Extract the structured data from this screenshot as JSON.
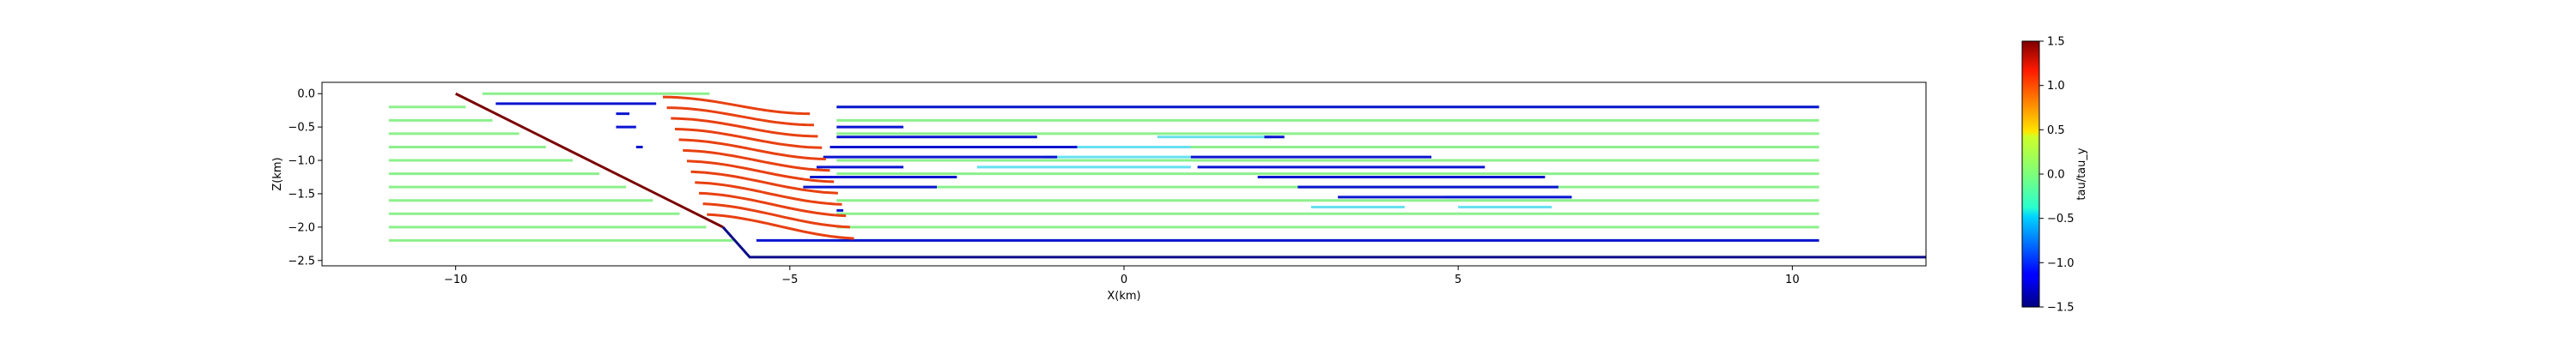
{
  "chart_data": {
    "type": "line",
    "title": "",
    "xlabel": "X(km)",
    "ylabel": "Z(km)",
    "xlim": [
      -12.0,
      12.0
    ],
    "ylim": [
      -2.58,
      0.17
    ],
    "xticks": [
      -10,
      -5,
      0,
      5,
      10
    ],
    "yticks": [
      0.0,
      -0.5,
      -1.0,
      -1.5,
      -2.0,
      -2.5
    ],
    "xtick_labels": [
      "−10",
      "−5",
      "0",
      "5",
      "10"
    ],
    "ytick_labels": [
      "0.0",
      "−0.5",
      "−1.0",
      "−1.5",
      "−2.0",
      "−2.5"
    ],
    "grid": false,
    "fault": {
      "description_color": "#7a0000",
      "x": [
        -10.0,
        -6.0
      ],
      "y": [
        0.0,
        -2.0
      ]
    },
    "basement": {
      "color": "#0b0b8a",
      "x": [
        -6.0,
        -5.6,
        12.0
      ],
      "y": [
        -2.0,
        -2.45,
        -2.45
      ]
    },
    "green_layers": {
      "color": "#8cf08c",
      "x_start": -11.0,
      "x_end": 10.4,
      "y": [
        -0.2,
        -0.4,
        -0.6,
        -0.8,
        -1.0,
        -1.2,
        -1.4,
        -1.6,
        -1.8,
        -2.0,
        -2.2
      ],
      "top_line": {
        "x": [
          -9.6,
          -6.2
        ],
        "y": [
          0.0,
          0.0
        ]
      }
    },
    "blue_layers": {
      "color": "#0a14d0",
      "segments": [
        {
          "x": [
            -4.3,
            10.4
          ],
          "y": -0.2
        },
        {
          "x": [
            -4.3,
            -3.3
          ],
          "y": -0.5
        },
        {
          "x": [
            -4.3,
            -1.3
          ],
          "y": -0.65
        },
        {
          "x": [
            -4.4,
            -0.7
          ],
          "y": -0.8
        },
        {
          "x": [
            -4.5,
            -1.0
          ],
          "y": -0.95
        },
        {
          "x": [
            -4.6,
            -3.3
          ],
          "y": -1.1
        },
        {
          "x": [
            -4.7,
            -2.5
          ],
          "y": -1.25
        },
        {
          "x": [
            -4.8,
            -2.8
          ],
          "y": -1.4
        },
        {
          "x": [
            -4.3,
            -4.2
          ],
          "y": -1.75
        },
        {
          "x": [
            -5.5,
            10.4
          ],
          "y": -2.2
        },
        {
          "x": [
            -9.4,
            -7.0
          ],
          "y": -0.15
        },
        {
          "x": [
            -7.6,
            -7.4
          ],
          "y": -0.3
        },
        {
          "x": [
            -7.6,
            -7.3
          ],
          "y": -0.5
        },
        {
          "x": [
            -7.3,
            -7.2
          ],
          "y": -0.8
        },
        {
          "x": [
            2.1,
            2.4
          ],
          "y": -0.65
        },
        {
          "x": [
            1.0,
            4.6
          ],
          "y": -0.95
        },
        {
          "x": [
            1.1,
            5.4
          ],
          "y": -1.1
        },
        {
          "x": [
            2.0,
            6.3
          ],
          "y": -1.25
        },
        {
          "x": [
            2.6,
            6.5
          ],
          "y": -1.4
        },
        {
          "x": [
            3.2,
            6.7
          ],
          "y": -1.55
        }
      ]
    },
    "cyan_layers": {
      "color": "#66e0f0",
      "segments": [
        {
          "x": [
            0.5,
            2.2
          ],
          "y": -0.65
        },
        {
          "x": [
            -1.5,
            1.0
          ],
          "y": -0.8
        },
        {
          "x": [
            -1.2,
            1.0
          ],
          "y": -0.95
        },
        {
          "x": [
            -2.2,
            1.0
          ],
          "y": -1.1
        },
        {
          "x": [
            2.8,
            4.8
          ],
          "y": -1.25
        },
        {
          "x": [
            4.8,
            6.7
          ],
          "y": -1.55
        },
        {
          "x": [
            5.0,
            6.4
          ],
          "y": -1.7
        },
        {
          "x": [
            2.8,
            4.2
          ],
          "y": -1.7
        }
      ]
    },
    "red_layers": {
      "color": "#e84010",
      "description": "fold of red horizons near the fault tip",
      "count": 12
    },
    "colorbar": {
      "label": "tau/tau_y",
      "min": -1.5,
      "max": 1.5,
      "ticks": [
        1.5,
        1.0,
        0.5,
        0.0,
        -0.5,
        -1.0,
        -1.5
      ],
      "tick_labels": [
        "1.5",
        "1.0",
        "0.5",
        "0.0",
        "−0.5",
        "−1.0",
        "−1.5"
      ],
      "colormap": "jet"
    }
  }
}
